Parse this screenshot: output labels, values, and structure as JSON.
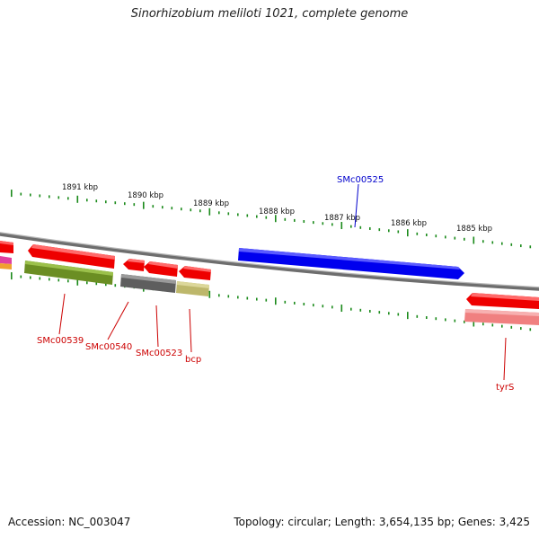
{
  "title": "Sinorhizobium meliloti 1021, complete genome",
  "footer": {
    "accession": "Accession: NC_003047",
    "summary": "Topology: circular; Length: 3,654,135 bp; Genes: 3,425"
  },
  "ticks": [
    {
      "label": "1891 kbp"
    },
    {
      "label": "1890 kbp"
    },
    {
      "label": "1889 kbp"
    },
    {
      "label": "1888 kbp"
    },
    {
      "label": "1887 kbp"
    },
    {
      "label": "1886 kbp"
    },
    {
      "label": "1885 kbp"
    }
  ],
  "gene_labels": [
    {
      "label": "SMc00525",
      "color": "#0000cc"
    },
    {
      "label": "SMc00539",
      "color": "#cc0000"
    },
    {
      "label": "SMc00540",
      "color": "#cc0000"
    },
    {
      "label": "SMc00523",
      "color": "#cc0000"
    },
    {
      "label": "bcp",
      "color": "#cc0000"
    },
    {
      "label": "tyrS",
      "color": "#cc0000"
    }
  ],
  "colors": {
    "forward_cds": "#0000ee",
    "reverse_cds": "#ee0000",
    "cog_olive": "#6b8e23",
    "cog_gray": "#666666",
    "cog_khaki": "#bdb76b",
    "cog_pink": "#f08080",
    "backbone": "#888888",
    "gc_ticks": "#1a8a1a"
  }
}
